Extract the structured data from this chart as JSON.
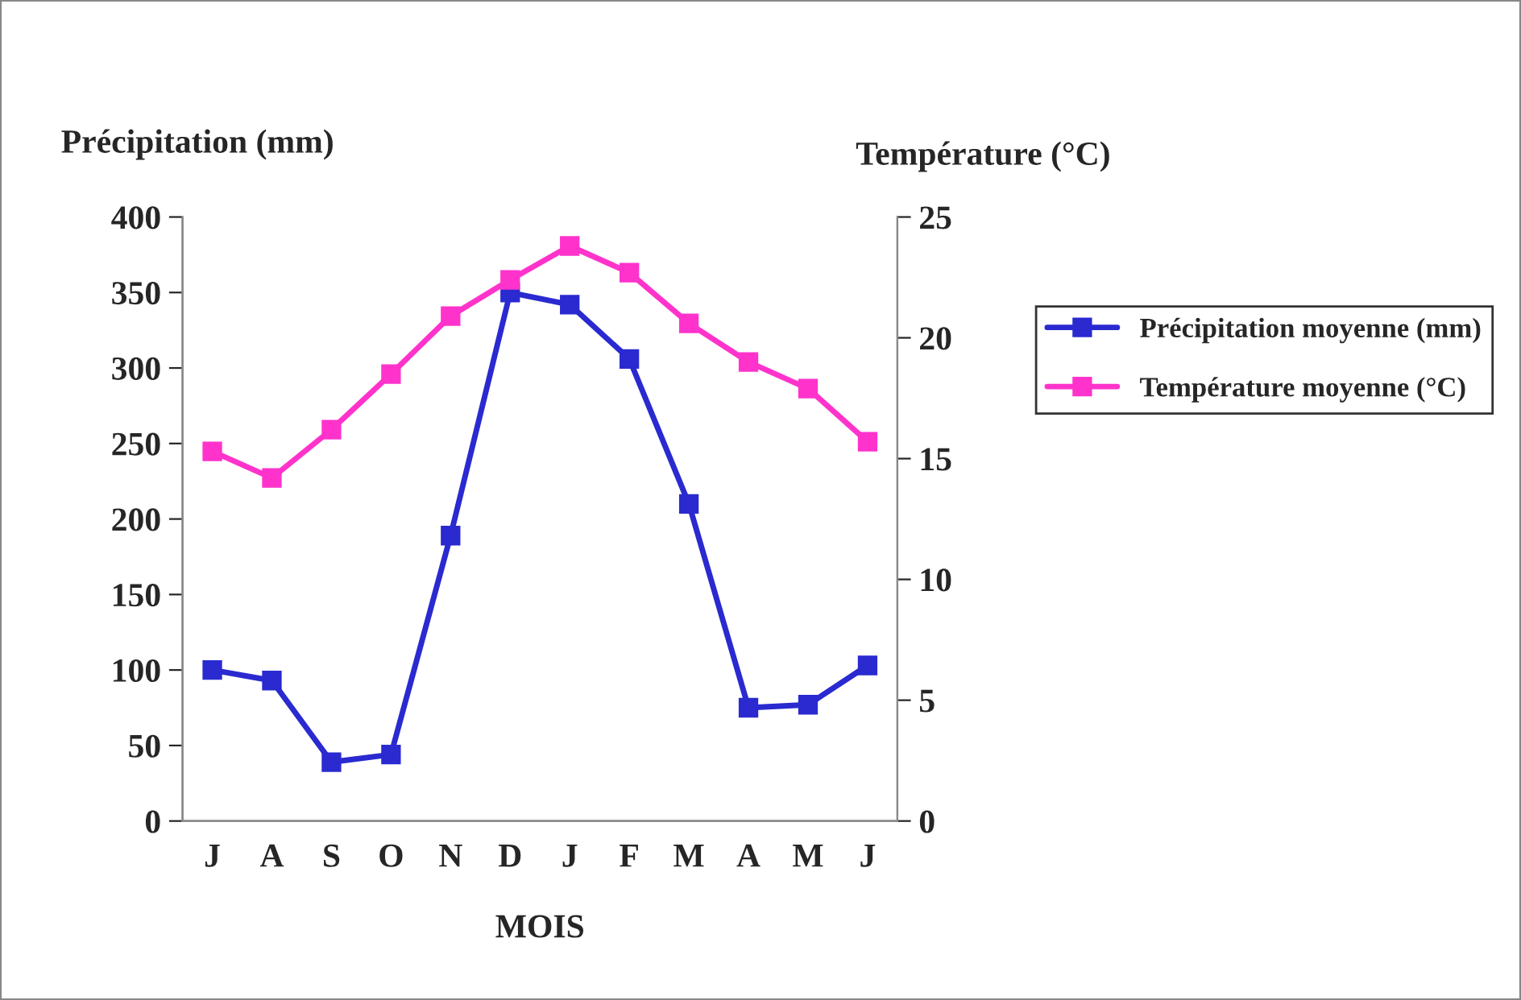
{
  "chart_data": {
    "type": "line",
    "xlabel": "MOIS",
    "ylabel": "Précipitation (mm)",
    "y2label": "Température (°C)",
    "categories": [
      "J",
      "A",
      "S",
      "O",
      "N",
      "D",
      "J",
      "F",
      "M",
      "A",
      "M",
      "J"
    ],
    "series": [
      {
        "name": "Précipitation moyenne (mm)",
        "color": "#2a2ad0",
        "values": [
          100,
          93,
          39,
          44,
          189,
          350,
          342,
          306,
          210,
          75,
          77,
          103
        ]
      },
      {
        "name": "Température moyenne (°C)",
        "color": "#ff33cc",
        "axis": "y2",
        "values": [
          15.3,
          14.2,
          16.2,
          18.5,
          20.9,
          22.4,
          23.8,
          22.7,
          20.6,
          19.0,
          17.9,
          15.7
        ]
      }
    ],
    "ylim": [
      0,
      400
    ],
    "yticks": [
      0,
      50,
      100,
      150,
      200,
      250,
      300,
      350,
      400
    ],
    "y2lim": [
      0,
      25
    ],
    "y2ticks": [
      0,
      5,
      10,
      15,
      20,
      25
    ],
    "marker": "square",
    "line_style": "solid",
    "legend": "right",
    "grid": false
  }
}
